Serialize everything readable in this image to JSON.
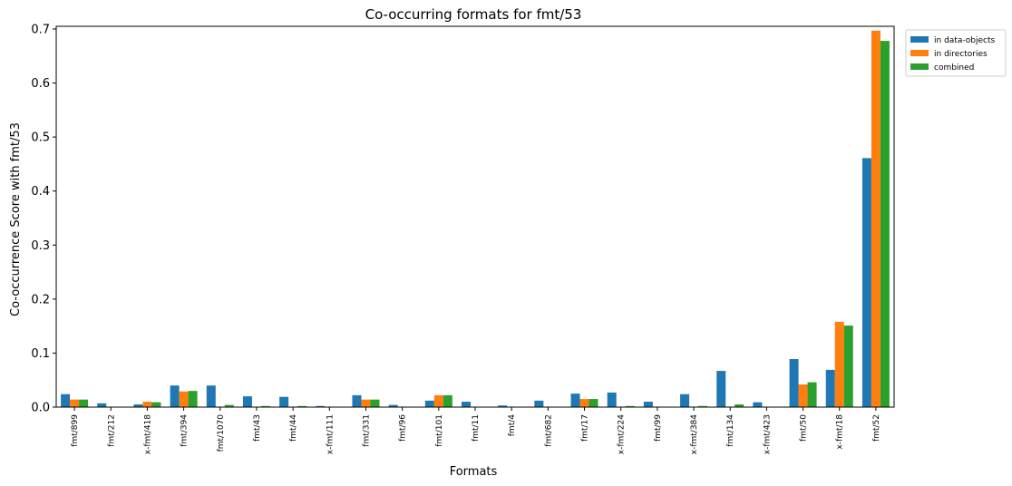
{
  "chart_data": {
    "type": "bar",
    "title": "Co-occurring formats for fmt/53",
    "xlabel": "Formats",
    "ylabel": "Co-occurrence Score with fmt/53",
    "ylim": [
      0,
      0.705
    ],
    "yticks": [
      "0.0",
      "0.1",
      "0.2",
      "0.3",
      "0.4",
      "0.5",
      "0.6",
      "0.7"
    ],
    "grid": false,
    "legend_position": "outside-top-right",
    "categories": [
      "fmt/899",
      "fmt/212",
      "x-fmt/418",
      "fmt/394",
      "fmt/1070",
      "fmt/43",
      "fmt/44",
      "x-fmt/111",
      "fmt/331",
      "fmt/96",
      "fmt/101",
      "fmt/11",
      "fmt/4",
      "fmt/682",
      "fmt/17",
      "x-fmt/224",
      "fmt/99",
      "x-fmt/384",
      "fmt/134",
      "x-fmt/423",
      "fmt/50",
      "x-fmt/18",
      "fmt/52"
    ],
    "series": [
      {
        "name": "in data-objects",
        "color": "#1f77b4",
        "values": [
          0.024,
          0.007,
          0.005,
          0.04,
          0.04,
          0.02,
          0.019,
          0.002,
          0.022,
          0.004,
          0.012,
          0.01,
          0.003,
          0.012,
          0.025,
          0.027,
          0.01,
          0.024,
          0.067,
          0.009,
          0.089,
          0.069,
          0.461
        ]
      },
      {
        "name": "in directories",
        "color": "#ff7f0e",
        "values": [
          0.014,
          0.0,
          0.01,
          0.029,
          0.0,
          0.0,
          0.0,
          0.0,
          0.014,
          0.0,
          0.022,
          0.0,
          0.0,
          0.0,
          0.015,
          0.0,
          0.0,
          0.0,
          0.0,
          0.0,
          0.042,
          0.158,
          0.697
        ]
      },
      {
        "name": "combined",
        "color": "#2ca02c",
        "values": [
          0.014,
          0.0,
          0.009,
          0.03,
          0.004,
          0.002,
          0.002,
          0.0,
          0.014,
          0.0,
          0.022,
          0.0,
          0.0,
          0.0,
          0.015,
          0.002,
          0.0,
          0.002,
          0.005,
          0.0,
          0.046,
          0.151,
          0.678
        ]
      }
    ]
  }
}
